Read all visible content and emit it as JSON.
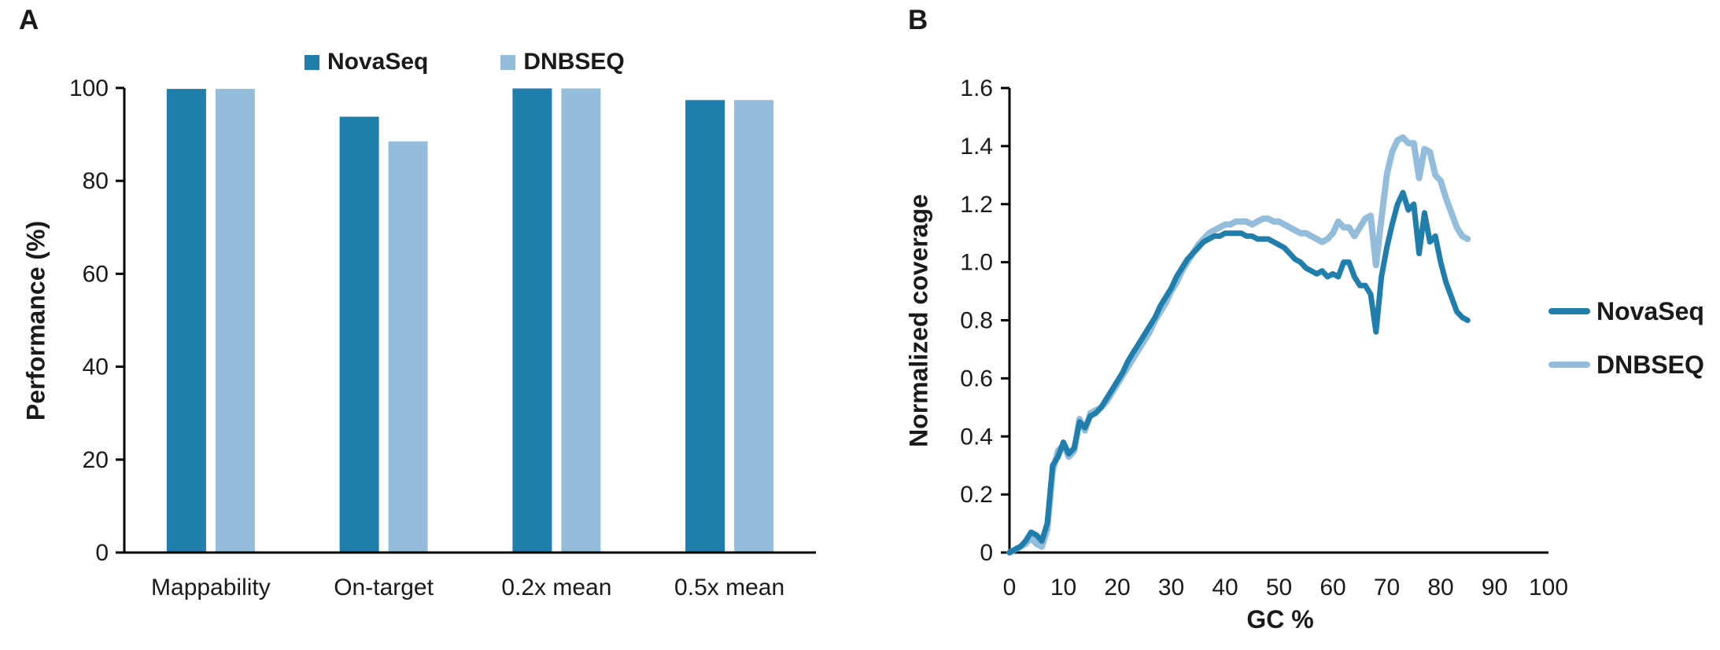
{
  "figure": {
    "panel_a_letter": "A",
    "panel_b_letter": "B"
  },
  "colors": {
    "novaseq": "#1F7EAC",
    "dnbseq": "#94BDDC",
    "axis": "#000000",
    "text": "#1A1A1A"
  },
  "chart_data": [
    {
      "type": "bar",
      "panel": "A",
      "title": "",
      "xlabel": "",
      "ylabel": "Performance (%)",
      "ylim": [
        0,
        100
      ],
      "yticks": [
        0,
        20,
        40,
        60,
        80,
        100
      ],
      "grid": false,
      "legend_position": "top",
      "categories": [
        "Mappability",
        "On-target",
        "0.2x mean",
        "0.5x mean"
      ],
      "series": [
        {
          "name": "NovaSeq",
          "color": "#1F7EAC",
          "values": [
            99.8,
            93.8,
            99.9,
            97.4
          ]
        },
        {
          "name": "DNBSEQ",
          "color": "#94BDDC",
          "values": [
            99.8,
            88.5,
            99.9,
            97.4
          ]
        }
      ]
    },
    {
      "type": "line",
      "panel": "B",
      "title": "",
      "xlabel": "GC %",
      "ylabel": "Normalized coverage",
      "xlim": [
        0,
        100
      ],
      "ylim": [
        0,
        1.6
      ],
      "xticks": [
        0,
        10,
        20,
        30,
        40,
        50,
        60,
        70,
        80,
        90,
        100
      ],
      "yticks": [
        0,
        0.2,
        0.4,
        0.6,
        0.8,
        1.0,
        1.2,
        1.4,
        1.6
      ],
      "grid": false,
      "legend_position": "right",
      "x": [
        0,
        1,
        2,
        3,
        4,
        5,
        6,
        7,
        8,
        9,
        10,
        11,
        12,
        13,
        14,
        15,
        16,
        17,
        18,
        19,
        20,
        21,
        22,
        23,
        24,
        25,
        26,
        27,
        28,
        29,
        30,
        31,
        32,
        33,
        34,
        35,
        36,
        37,
        38,
        39,
        40,
        41,
        42,
        43,
        44,
        45,
        46,
        47,
        48,
        49,
        50,
        51,
        52,
        53,
        54,
        55,
        56,
        57,
        58,
        59,
        60,
        61,
        62,
        63,
        64,
        65,
        66,
        67,
        68,
        69,
        70,
        71,
        72,
        73,
        74,
        75,
        76,
        77,
        78,
        79,
        80,
        81,
        82,
        83,
        84,
        85
      ],
      "series": [
        {
          "name": "NovaSeq",
          "color": "#1F7EAC",
          "line_width": 7,
          "values": [
            0.0,
            0.01,
            0.02,
            0.04,
            0.07,
            0.06,
            0.04,
            0.1,
            0.3,
            0.33,
            0.38,
            0.34,
            0.36,
            0.45,
            0.43,
            0.47,
            0.48,
            0.5,
            0.53,
            0.56,
            0.59,
            0.62,
            0.66,
            0.69,
            0.72,
            0.75,
            0.78,
            0.81,
            0.85,
            0.88,
            0.91,
            0.95,
            0.98,
            1.01,
            1.03,
            1.05,
            1.07,
            1.08,
            1.09,
            1.09,
            1.1,
            1.1,
            1.1,
            1.1,
            1.09,
            1.09,
            1.08,
            1.08,
            1.08,
            1.07,
            1.06,
            1.05,
            1.03,
            1.01,
            1.0,
            0.98,
            0.97,
            0.96,
            0.97,
            0.95,
            0.96,
            0.95,
            1.0,
            1.0,
            0.95,
            0.92,
            0.92,
            0.89,
            0.76,
            0.95,
            1.05,
            1.13,
            1.2,
            1.24,
            1.18,
            1.2,
            1.03,
            1.17,
            1.07,
            1.09,
            1.0,
            0.93,
            0.88,
            0.83,
            0.81,
            0.8
          ]
        },
        {
          "name": "DNBSEQ",
          "color": "#94BDDC",
          "line_width": 8,
          "values": [
            0.0,
            0.01,
            0.02,
            0.03,
            0.05,
            0.03,
            0.02,
            0.08,
            0.28,
            0.35,
            0.37,
            0.33,
            0.35,
            0.46,
            0.42,
            0.48,
            0.49,
            0.5,
            0.52,
            0.55,
            0.58,
            0.61,
            0.64,
            0.67,
            0.7,
            0.73,
            0.76,
            0.8,
            0.83,
            0.86,
            0.9,
            0.93,
            0.97,
            1.0,
            1.03,
            1.06,
            1.08,
            1.1,
            1.11,
            1.12,
            1.13,
            1.13,
            1.14,
            1.14,
            1.14,
            1.13,
            1.14,
            1.15,
            1.15,
            1.14,
            1.14,
            1.13,
            1.12,
            1.11,
            1.1,
            1.1,
            1.09,
            1.08,
            1.07,
            1.08,
            1.1,
            1.14,
            1.12,
            1.12,
            1.09,
            1.12,
            1.15,
            1.16,
            0.99,
            1.15,
            1.3,
            1.38,
            1.42,
            1.43,
            1.41,
            1.41,
            1.29,
            1.39,
            1.38,
            1.3,
            1.28,
            1.22,
            1.17,
            1.12,
            1.09,
            1.08
          ]
        }
      ]
    }
  ]
}
